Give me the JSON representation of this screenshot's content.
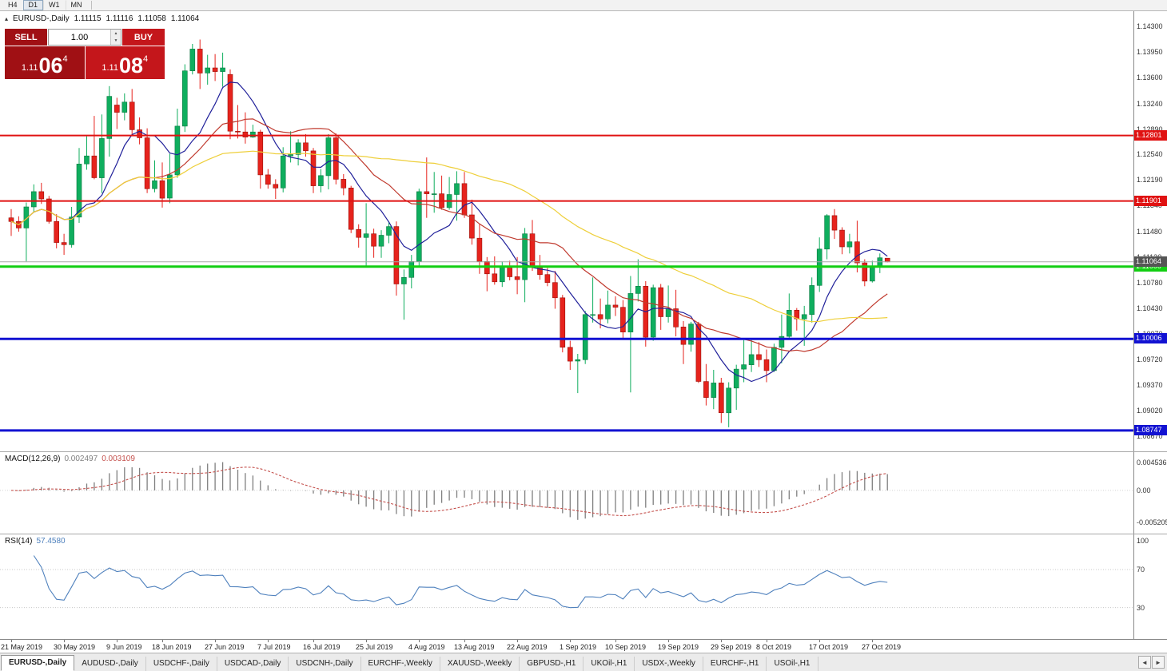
{
  "toolbar": {
    "timeframes": [
      {
        "label": "H4",
        "active": false
      },
      {
        "label": "D1",
        "active": true
      },
      {
        "label": "W1",
        "active": false
      },
      {
        "label": "MN",
        "active": false
      }
    ]
  },
  "header": {
    "marker": "▴",
    "symbol_title": "EURUSD-,Daily",
    "open": "1.11115",
    "high": "1.11116",
    "low": "1.11058",
    "close": "1.11064"
  },
  "trade_panel": {
    "sell_label": "SELL",
    "buy_label": "BUY",
    "volume": "1.00",
    "volume_up_icon": "▲",
    "volume_down_icon": "▼",
    "sell_price": {
      "prefix": "1.11",
      "big": "06",
      "sup": "4"
    },
    "buy_price": {
      "prefix": "1.11",
      "big": "08",
      "sup": "4"
    }
  },
  "chart_data": {
    "type": "candlestick",
    "symbol": "EURUSD-",
    "timeframe": "Daily",
    "colors": {
      "up": "#0fae5e",
      "up_border": "#0a7a42",
      "down": "#e6231d",
      "down_border": "#991009",
      "ma_fast": "#20209a",
      "ma_mid": "#c03a2e",
      "ma_slow": "#eecf3a"
    },
    "price_axis": {
      "top": 1.1451,
      "bottom": 1.0846,
      "labels": [
        "1.14300",
        "1.13950",
        "1.13600",
        "1.13240",
        "1.12890",
        "1.12540",
        "1.12190",
        "1.11840",
        "1.11480",
        "1.11130",
        "1.10780",
        "1.10430",
        "1.10070",
        "1.09720",
        "1.09370",
        "1.09020",
        "1.08670"
      ]
    },
    "hlines": [
      {
        "price": 1.12801,
        "color": "#e01212",
        "width": 2,
        "tag": "1.12801"
      },
      {
        "price": 1.11901,
        "color": "#e01212",
        "width": 2,
        "tag": "1.11901"
      },
      {
        "price": 1.11,
        "color": "#12ce12",
        "width": 3,
        "tag": "1.11000"
      },
      {
        "price": 1.10006,
        "color": "#1212d2",
        "width": 3,
        "tag": "1.10006"
      },
      {
        "price": 1.08747,
        "color": "#1212d2",
        "width": 3,
        "tag": "1.08747"
      }
    ],
    "bid_line": {
      "price": 1.11064,
      "tag": "1.11064",
      "color": "#a8a8a8",
      "tag_bg": "#555555"
    },
    "ma_lines": [
      {
        "period": 8,
        "color": "#20209a"
      },
      {
        "period": 20,
        "color": "#c03a2e"
      },
      {
        "period": 45,
        "color": "#eecf3a"
      }
    ],
    "candles": [
      [
        1.1167,
        1.1179,
        1.1142,
        1.1162
      ],
      [
        1.1162,
        1.1169,
        1.1148,
        1.1153
      ],
      [
        1.1153,
        1.1188,
        1.1107,
        1.1182
      ],
      [
        1.1182,
        1.1213,
        1.1174,
        1.1203
      ],
      [
        1.1203,
        1.1215,
        1.1186,
        1.1193
      ],
      [
        1.1193,
        1.1197,
        1.1159,
        1.1162
      ],
      [
        1.1162,
        1.1172,
        1.1125,
        1.1133
      ],
      [
        1.1133,
        1.1145,
        1.1116,
        1.113
      ],
      [
        1.113,
        1.1182,
        1.1126,
        1.1168
      ],
      [
        1.1168,
        1.1263,
        1.116,
        1.1241
      ],
      [
        1.1241,
        1.1279,
        1.1233,
        1.1252
      ],
      [
        1.1252,
        1.1307,
        1.122,
        1.1222
      ],
      [
        1.1222,
        1.1309,
        1.1201,
        1.1276
      ],
      [
        1.1276,
        1.1348,
        1.1251,
        1.1334
      ],
      [
        1.1322,
        1.1332,
        1.1289,
        1.1312
      ],
      [
        1.1312,
        1.1338,
        1.1301,
        1.1326
      ],
      [
        1.1326,
        1.1344,
        1.128,
        1.1288
      ],
      [
        1.1288,
        1.1305,
        1.1268,
        1.1277
      ],
      [
        1.1277,
        1.129,
        1.1201,
        1.1207
      ],
      [
        1.1207,
        1.1246,
        1.1202,
        1.1218
      ],
      [
        1.1218,
        1.1243,
        1.1181,
        1.1194
      ],
      [
        1.1194,
        1.1255,
        1.1187,
        1.1226
      ],
      [
        1.1226,
        1.1317,
        1.1222,
        1.1293
      ],
      [
        1.1293,
        1.1378,
        1.1285,
        1.1369
      ],
      [
        1.1369,
        1.1406,
        1.1364,
        1.1399
      ],
      [
        1.1399,
        1.1412,
        1.1344,
        1.1366
      ],
      [
        1.1366,
        1.1391,
        1.135,
        1.1373
      ],
      [
        1.1373,
        1.1392,
        1.1355,
        1.1368
      ],
      [
        1.1368,
        1.1394,
        1.1347,
        1.1373
      ],
      [
        1.1364,
        1.1371,
        1.1275,
        1.1286
      ],
      [
        1.1286,
        1.1322,
        1.1276,
        1.1285
      ],
      [
        1.1285,
        1.1312,
        1.1269,
        1.1278
      ],
      [
        1.1278,
        1.1295,
        1.1277,
        1.1285
      ],
      [
        1.1285,
        1.1288,
        1.1207,
        1.1226
      ],
      [
        1.1226,
        1.1234,
        1.1207,
        1.1213
      ],
      [
        1.1213,
        1.122,
        1.1193,
        1.1208
      ],
      [
        1.1208,
        1.1264,
        1.1202,
        1.1252
      ],
      [
        1.1252,
        1.1286,
        1.1243,
        1.1254
      ],
      [
        1.1254,
        1.1275,
        1.1239,
        1.127
      ],
      [
        1.127,
        1.1282,
        1.1251,
        1.1259
      ],
      [
        1.1259,
        1.1263,
        1.1201,
        1.1211
      ],
      [
        1.1211,
        1.1234,
        1.1202,
        1.1225
      ],
      [
        1.1225,
        1.1282,
        1.1206,
        1.1277
      ],
      [
        1.1277,
        1.1283,
        1.1213,
        1.122
      ],
      [
        1.122,
        1.1227,
        1.1198,
        1.1208
      ],
      [
        1.1208,
        1.1211,
        1.1146,
        1.1151
      ],
      [
        1.1151,
        1.1158,
        1.1126,
        1.114
      ],
      [
        1.114,
        1.1187,
        1.1101,
        1.1145
      ],
      [
        1.1145,
        1.1152,
        1.1112,
        1.1128
      ],
      [
        1.1128,
        1.115,
        1.1112,
        1.1143
      ],
      [
        1.1143,
        1.1162,
        1.1132,
        1.1155
      ],
      [
        1.1155,
        1.1162,
        1.106,
        1.1076
      ],
      [
        1.1076,
        1.1096,
        1.1027,
        1.1085
      ],
      [
        1.1085,
        1.1116,
        1.107,
        1.1107
      ],
      [
        1.1107,
        1.1207,
        1.1101,
        1.1203
      ],
      [
        1.1203,
        1.125,
        1.1167,
        1.12
      ],
      [
        1.12,
        1.123,
        1.1174,
        1.12
      ],
      [
        1.12,
        1.1225,
        1.1178,
        1.1181
      ],
      [
        1.1181,
        1.1223,
        1.1178,
        1.1199
      ],
      [
        1.1199,
        1.1231,
        1.1163,
        1.1214
      ],
      [
        1.1214,
        1.123,
        1.1167,
        1.1171
      ],
      [
        1.1171,
        1.1192,
        1.113,
        1.1139
      ],
      [
        1.1139,
        1.1158,
        1.109,
        1.1107
      ],
      [
        1.1107,
        1.1113,
        1.1066,
        1.109
      ],
      [
        1.109,
        1.1114,
        1.1075,
        1.1079
      ],
      [
        1.1079,
        1.1107,
        1.1072,
        1.11
      ],
      [
        1.11,
        1.1108,
        1.1081,
        1.1086
      ],
      [
        1.1086,
        1.1113,
        1.1062,
        1.1082
      ],
      [
        1.1082,
        1.1153,
        1.1051,
        1.1145
      ],
      [
        1.1145,
        1.1164,
        1.1094,
        1.1101
      ],
      [
        1.1101,
        1.1116,
        1.1082,
        1.1089
      ],
      [
        1.1089,
        1.1098,
        1.1073,
        1.1078
      ],
      [
        1.1078,
        1.1094,
        1.1042,
        1.1057
      ],
      [
        1.1057,
        1.1061,
        1.0982,
        1.0989
      ],
      [
        1.0989,
        1.0998,
        1.0958,
        1.097
      ],
      [
        1.097,
        1.098,
        1.0926,
        1.0972
      ],
      [
        1.0972,
        1.1039,
        1.0966,
        1.1034
      ],
      [
        1.1034,
        1.1085,
        1.1023,
        1.1034
      ],
      [
        1.1034,
        1.1056,
        1.1015,
        1.1028
      ],
      [
        1.1028,
        1.1067,
        1.1022,
        1.1047
      ],
      [
        1.1047,
        1.1059,
        1.1032,
        1.1044
      ],
      [
        1.1044,
        1.1054,
        1.1002,
        1.101
      ],
      [
        1.101,
        1.1087,
        1.0927,
        1.1063
      ],
      [
        1.1063,
        1.111,
        1.1052,
        1.1073
      ],
      [
        1.1073,
        1.108,
        1.099,
        1.1003
      ],
      [
        1.1003,
        1.1075,
        1.0998,
        1.1071
      ],
      [
        1.1071,
        1.1076,
        1.1013,
        1.1031
      ],
      [
        1.1031,
        1.1074,
        1.1023,
        1.1042
      ],
      [
        1.1042,
        1.1068,
        1.1004,
        1.1017
      ],
      [
        1.1017,
        1.1025,
        1.0966,
        1.0993
      ],
      [
        1.0993,
        1.1024,
        1.0983,
        1.1021
      ],
      [
        1.1021,
        1.1024,
        1.094,
        1.0942
      ],
      [
        1.0942,
        1.0966,
        1.0909,
        1.092
      ],
      [
        1.092,
        1.0958,
        1.0904,
        1.094
      ],
      [
        1.094,
        1.0947,
        1.0885,
        1.0899
      ],
      [
        1.0899,
        1.0941,
        1.0879,
        1.0933
      ],
      [
        1.0933,
        1.0965,
        1.0903,
        1.0959
      ],
      [
        1.0959,
        1.0999,
        1.0941,
        1.0965
      ],
      [
        1.0965,
        1.0999,
        1.0955,
        1.0979
      ],
      [
        1.0979,
        1.0996,
        1.0962,
        1.0972
      ],
      [
        1.0972,
        1.0986,
        1.0941,
        1.0957
      ],
      [
        1.0957,
        1.0994,
        1.0955,
        1.0989
      ],
      [
        1.0989,
        1.1034,
        1.0967,
        1.1004
      ],
      [
        1.1004,
        1.1063,
        1.1002,
        1.104
      ],
      [
        1.104,
        1.1043,
        1.1012,
        1.1028
      ],
      [
        1.1028,
        1.1046,
        1.0991,
        1.1034
      ],
      [
        1.1034,
        1.1085,
        1.1023,
        1.1074
      ],
      [
        1.1074,
        1.114,
        1.1065,
        1.1124
      ],
      [
        1.1124,
        1.1172,
        1.111,
        1.117
      ],
      [
        1.117,
        1.1179,
        1.1138,
        1.115
      ],
      [
        1.115,
        1.1154,
        1.1117,
        1.1127
      ],
      [
        1.1127,
        1.1145,
        1.1118,
        1.1134
      ],
      [
        1.1134,
        1.1163,
        1.1092,
        1.1105
      ],
      [
        1.1105,
        1.111,
        1.1073,
        1.108
      ],
      [
        1.108,
        1.1108,
        1.1078,
        1.1099
      ],
      [
        1.1099,
        1.1118,
        1.1091,
        1.1112
      ],
      [
        1.11115,
        1.11116,
        1.11058,
        1.11064
      ]
    ],
    "date_axis": [
      {
        "text": "21 May 2019",
        "i": 0
      },
      {
        "text": "30 May 2019",
        "i": 7
      },
      {
        "text": "9 Jun 2019",
        "i": 14
      },
      {
        "text": "18 Jun 2019",
        "i": 20
      },
      {
        "text": "27 Jun 2019",
        "i": 27
      },
      {
        "text": "7 Jul 2019",
        "i": 34
      },
      {
        "text": "16 Jul 2019",
        "i": 40
      },
      {
        "text": "25 Jul 2019",
        "i": 47
      },
      {
        "text": "4 Aug 2019",
        "i": 54
      },
      {
        "text": "13 Aug 2019",
        "i": 60
      },
      {
        "text": "22 Aug 2019",
        "i": 67
      },
      {
        "text": "1 Sep 2019",
        "i": 74
      },
      {
        "text": "10 Sep 2019",
        "i": 80
      },
      {
        "text": "19 Sep 2019",
        "i": 87
      },
      {
        "text": "29 Sep 2019",
        "i": 94
      },
      {
        "text": "8 Oct 2019",
        "i": 100
      },
      {
        "text": "17 Oct 2019",
        "i": 107
      },
      {
        "text": "27 Oct 2019",
        "i": 114
      }
    ],
    "indicators": {
      "macd": {
        "name": "MACD(12,26,9)",
        "main_value": "0.002497",
        "signal_value": "0.003109",
        "axis_labels": [
          "0.004536",
          "0.00",
          "-0.005205"
        ],
        "scale_top": 0.0062,
        "scale_bottom": -0.007,
        "histogram_color": "#7f7f7f",
        "signal_color": "#c4504c"
      },
      "rsi": {
        "name": "RSI(14)",
        "value": "57.4580",
        "axis_labels": [
          "100",
          "70",
          "30"
        ],
        "levels": [
          70,
          30
        ],
        "line_color": "#4f81bd"
      }
    }
  },
  "tabs": {
    "left_arrow": "◄",
    "right_arrow": "►",
    "items": [
      {
        "label": "EURUSD-,Daily",
        "active": true
      },
      {
        "label": "AUDUSD-,Daily",
        "active": false
      },
      {
        "label": "USDCHF-,Daily",
        "active": false
      },
      {
        "label": "USDCAD-,Daily",
        "active": false
      },
      {
        "label": "USDCNH-,Daily",
        "active": false
      },
      {
        "label": "EURCHF-,Weekly",
        "active": false
      },
      {
        "label": "XAUUSD-,Weekly",
        "active": false
      },
      {
        "label": "GBPUSD-,H1",
        "active": false
      },
      {
        "label": "UKOil-,H1",
        "active": false
      },
      {
        "label": "USDX-,Weekly",
        "active": false
      },
      {
        "label": "EURCHF-,H1",
        "active": false
      },
      {
        "label": "USOil-,H1",
        "active": false
      }
    ]
  }
}
